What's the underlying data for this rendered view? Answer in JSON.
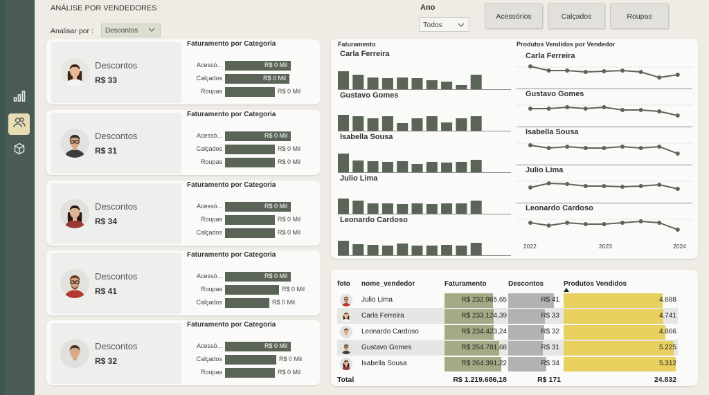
{
  "page_title": "ANÁLISE POR VENDEDORES",
  "slicer": {
    "label": "Analisar por :",
    "value": "Descontos"
  },
  "ano": {
    "label": "Ano",
    "value": "Todos"
  },
  "category_buttons": [
    "Acessórios",
    "Calçados",
    "Roupas"
  ],
  "nav_icons": [
    "bar-chart-icon",
    "users-icon",
    "cube-icon"
  ],
  "colors": {
    "nav": "#4b5c56",
    "bar": "#5a6457",
    "accent": "#e8dcb5",
    "yellow": "#e9cf5e",
    "olive": "#a4aa85",
    "grey": "#b2b2b2"
  },
  "cards": [
    {
      "type": "Descontos",
      "value": "R$ 33",
      "title": "Faturamento por Categoria",
      "bars": [
        {
          "label": "Acessó...",
          "text": "R$ 0 Mil",
          "fill": 0.95
        },
        {
          "label": "Calçados",
          "text": "R$ 0 Mil",
          "fill": 0.93
        },
        {
          "label": "Roupas",
          "text": "R$ 0 Mil",
          "fill": 0.72
        }
      ]
    },
    {
      "type": "Descontos",
      "value": "R$ 31",
      "title": "Faturamento por Categoria",
      "bars": [
        {
          "label": "Acessó...",
          "text": "R$ 0 Mil",
          "fill": 0.95
        },
        {
          "label": "Calçados",
          "text": "R$ 0 Mil",
          "fill": 0.72
        },
        {
          "label": "Roupas",
          "text": "R$ 0 Mil",
          "fill": 0.72
        }
      ]
    },
    {
      "type": "Descontos",
      "value": "R$ 34",
      "title": "Faturamento por Categoria",
      "bars": [
        {
          "label": "Acessó...",
          "text": "R$ 0 Mil",
          "fill": 0.95
        },
        {
          "label": "Roupas",
          "text": "R$ 0 Mil",
          "fill": 0.72
        },
        {
          "label": "Calçados",
          "text": "R$ 0 Mil",
          "fill": 0.72
        }
      ]
    },
    {
      "type": "Descontos",
      "value": "R$ 41",
      "title": "Faturamento por Categoria",
      "bars": [
        {
          "label": "Acessó...",
          "text": "R$ 0 Mil",
          "fill": 0.95
        },
        {
          "label": "Roupas",
          "text": "R$ 0 Mil",
          "fill": 0.78
        },
        {
          "label": "Calçados",
          "text": "R$ 0 Mil",
          "fill": 0.64
        }
      ]
    },
    {
      "type": "Descontos",
      "value": "R$ 32",
      "title": "Faturamento por Categoria",
      "bars": [
        {
          "label": "Acessó...",
          "text": "R$ 0 Mil",
          "fill": 0.95
        },
        {
          "label": "Calçados",
          "text": "R$ 0 Mil",
          "fill": 0.74
        },
        {
          "label": "Roupas",
          "text": "R$ 0 Mil",
          "fill": 0.72
        }
      ]
    }
  ],
  "faturamento_panel": {
    "title": "Faturamento",
    "sellers": [
      {
        "name": "Carla Ferreira",
        "values": [
          26,
          21,
          17,
          16,
          17,
          16,
          13,
          11,
          6,
          21
        ]
      },
      {
        "name": "Gustavo Gomes",
        "values": [
          23,
          21,
          18,
          21,
          11,
          18,
          21,
          12,
          18,
          21
        ]
      },
      {
        "name": "Isabella Sousa",
        "values": [
          27,
          17,
          16,
          15,
          16,
          12,
          15,
          14,
          15,
          18
        ]
      },
      {
        "name": "Julio Lima",
        "values": [
          22,
          19,
          15,
          15,
          14,
          15,
          14,
          15,
          15,
          19
        ]
      },
      {
        "name": "Leonardo Cardoso",
        "values": [
          21,
          16,
          15,
          14,
          17,
          14,
          14,
          15,
          14,
          18
        ]
      }
    ]
  },
  "produtos_panel": {
    "title": "Produtos Vendidos por Vendedor",
    "years": [
      "2022",
      "2023",
      "2024"
    ],
    "sellers": [
      {
        "name": "Carla Ferreira",
        "values": [
          9,
          6,
          6,
          5,
          5.5,
          6,
          5,
          1,
          3
        ]
      },
      {
        "name": "Gustavo Gomes",
        "values": [
          6,
          6,
          7,
          6,
          7,
          5,
          5,
          4,
          1
        ]
      },
      {
        "name": "Isabella Sousa",
        "values": [
          7,
          5,
          6,
          5,
          5,
          6,
          5,
          6,
          1
        ]
      },
      {
        "name": "Julio Lima",
        "values": [
          4,
          7,
          6.5,
          5,
          5,
          4.5,
          5,
          6,
          3
        ]
      },
      {
        "name": "Leonardo Cardoso",
        "values": [
          6,
          4,
          6,
          5,
          5,
          6,
          7,
          6,
          1
        ]
      }
    ]
  },
  "table": {
    "headers": [
      "foto",
      "nome_vendedor",
      "Faturamento",
      "Descontos",
      "Produtos Vendidos"
    ],
    "rows": [
      {
        "name": "Julio Lima",
        "faturamento": "R$ 232.965,65",
        "fat_fill": 0.85,
        "descontos": "R$ 41",
        "desc_fill": 0.92,
        "produtos": "4.688",
        "prod_fill": 0.88
      },
      {
        "name": "Carla Ferreira",
        "faturamento": "R$ 233.124,39",
        "fat_fill": 0.86,
        "descontos": "R$ 33",
        "desc_fill": 0.74,
        "produtos": "4.741",
        "prod_fill": 0.89
      },
      {
        "name": "Leonardo Cardoso",
        "faturamento": "R$ 234.423,24",
        "fat_fill": 0.86,
        "descontos": "R$ 32",
        "desc_fill": 0.72,
        "produtos": "4.866",
        "prod_fill": 0.91
      },
      {
        "name": "Gustavo Gomes",
        "faturamento": "R$ 254.781,68",
        "fat_fill": 0.96,
        "descontos": "R$ 31",
        "desc_fill": 0.7,
        "produtos": "5.225",
        "prod_fill": 0.98
      },
      {
        "name": "Isabella Sousa",
        "faturamento": "R$ 264.391,22",
        "fat_fill": 1.0,
        "descontos": "R$ 34",
        "desc_fill": 0.76,
        "produtos": "5.312",
        "prod_fill": 1.0
      }
    ],
    "total": {
      "label": "Total",
      "faturamento": "R$ 1.219.686,18",
      "descontos": "R$ 171",
      "produtos": "24.832"
    }
  }
}
